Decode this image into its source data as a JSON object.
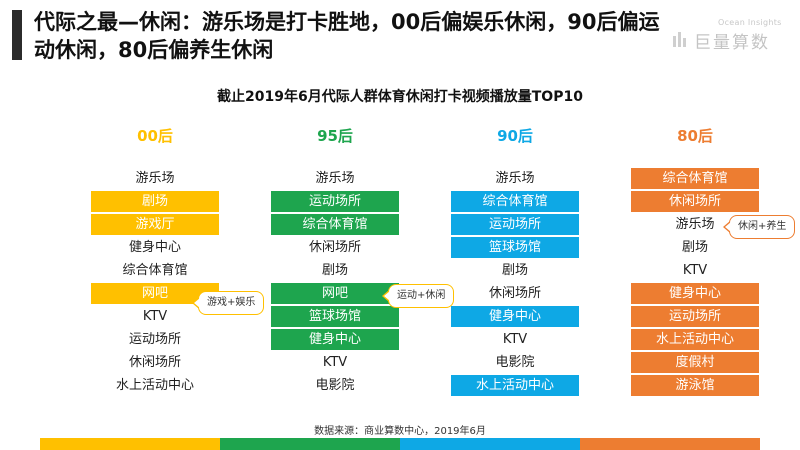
{
  "title": "代际之最—休闲：游乐场是打卡胜地，00后偏娱乐休闲，90后偏运动休闲，80后偏养生休闲",
  "logo": {
    "en": "Ocean Insights",
    "cn": "巨量算数"
  },
  "subtitle": "截止2019年6月代际人群体育休闲打卡视频播放量TOP10",
  "colors": {
    "yellow": "#ffc000",
    "green": "#1ea54e",
    "blue": "#0ea8e5",
    "orange": "#ed7d31"
  },
  "columns": [
    {
      "header": "00后",
      "items": [
        {
          "text": "游乐场",
          "hl": false
        },
        {
          "text": "剧场",
          "hl": true
        },
        {
          "text": "游戏厅",
          "hl": true
        },
        {
          "text": "健身中心",
          "hl": false
        },
        {
          "text": "综合体育馆",
          "hl": false
        },
        {
          "text": "网吧",
          "hl": true
        },
        {
          "text": "KTV",
          "hl": false
        },
        {
          "text": "运动场所",
          "hl": false
        },
        {
          "text": "休闲场所",
          "hl": false
        },
        {
          "text": "水上活动中心",
          "hl": false
        }
      ]
    },
    {
      "header": "95后",
      "items": [
        {
          "text": "游乐场",
          "hl": false
        },
        {
          "text": "运动场所",
          "hl": true
        },
        {
          "text": "综合体育馆",
          "hl": true
        },
        {
          "text": "休闲场所",
          "hl": false
        },
        {
          "text": "剧场",
          "hl": false
        },
        {
          "text": "网吧",
          "hl": true
        },
        {
          "text": "篮球场馆",
          "hl": true
        },
        {
          "text": "健身中心",
          "hl": true
        },
        {
          "text": "KTV",
          "hl": false
        },
        {
          "text": "电影院",
          "hl": false
        }
      ]
    },
    {
      "header": "90后",
      "items": [
        {
          "text": "游乐场",
          "hl": false
        },
        {
          "text": "综合体育馆",
          "hl": true
        },
        {
          "text": "运动场所",
          "hl": true
        },
        {
          "text": "篮球场馆",
          "hl": true
        },
        {
          "text": "剧场",
          "hl": false
        },
        {
          "text": "休闲场所",
          "hl": false
        },
        {
          "text": "健身中心",
          "hl": true
        },
        {
          "text": "KTV",
          "hl": false
        },
        {
          "text": "电影院",
          "hl": false
        },
        {
          "text": "水上活动中心",
          "hl": true
        }
      ]
    },
    {
      "header": "80后",
      "items": [
        {
          "text": "综合体育馆",
          "hl": true
        },
        {
          "text": "休闲场所",
          "hl": true
        },
        {
          "text": "游乐场",
          "hl": false
        },
        {
          "text": "剧场",
          "hl": false
        },
        {
          "text": "KTV",
          "hl": false
        },
        {
          "text": "健身中心",
          "hl": true
        },
        {
          "text": "运动场所",
          "hl": true
        },
        {
          "text": "水上活动中心",
          "hl": true
        },
        {
          "text": "度假村",
          "hl": true
        },
        {
          "text": "游泳馆",
          "hl": true
        }
      ]
    }
  ],
  "callouts": [
    {
      "text": "游戏+娱乐",
      "column": 0
    },
    {
      "text": "运动+休闲",
      "column": 1
    },
    {
      "text": "休闲+养生",
      "column": 3
    }
  ],
  "source": "数据来源：商业算数中心，2019年6月"
}
